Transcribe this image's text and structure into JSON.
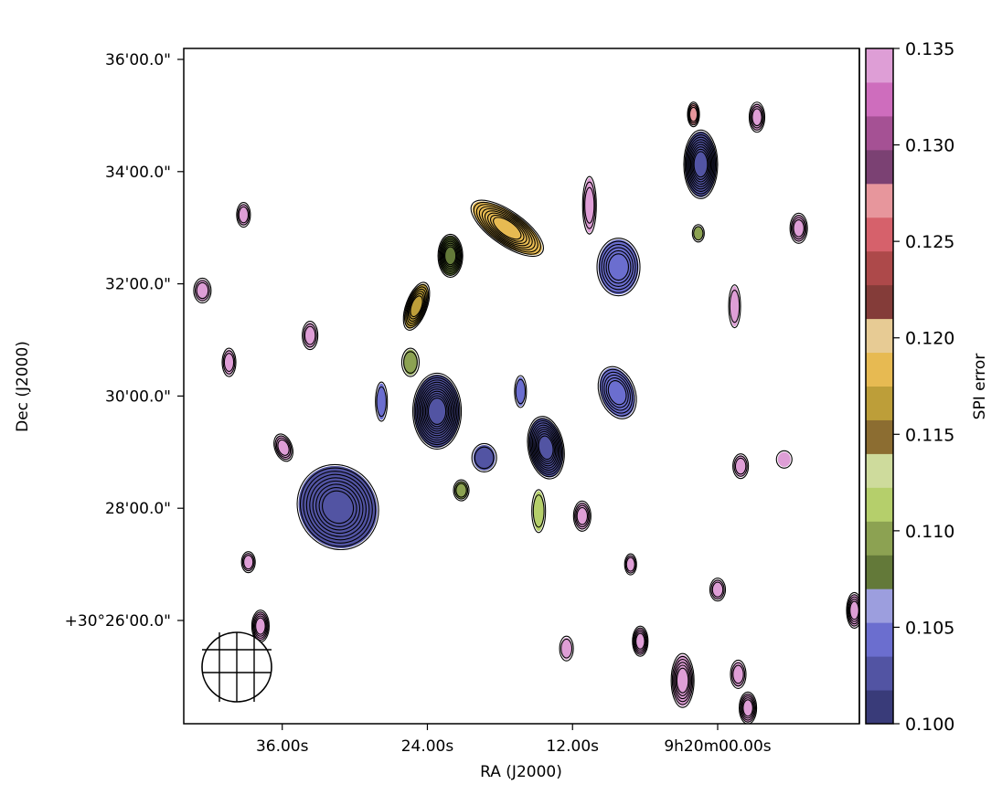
{
  "chart_data": {
    "type": "heatmap",
    "title": "",
    "xlabel": "RA (J2000)",
    "ylabel": "Dec (J2000)",
    "x_unit": "seconds of RA relative to 9h20m00s",
    "y_unit": "arcmin of Dec relative to +30°00'",
    "xlim": [
      44.1,
      -11.7
    ],
    "ylim": [
      24.16,
      36.2
    ],
    "x_ticks": [
      {
        "value": 36,
        "label": "36.00s"
      },
      {
        "value": 24,
        "label": "24.00s"
      },
      {
        "value": 12,
        "label": "12.00s"
      },
      {
        "value": 0,
        "label": "9h20m00.00s"
      }
    ],
    "y_ticks": [
      {
        "value": 36,
        "label": "36'00.0\""
      },
      {
        "value": 34,
        "label": "34'00.0\""
      },
      {
        "value": 32,
        "label": "32'00.0\""
      },
      {
        "value": 30,
        "label": "30'00.0\""
      },
      {
        "value": 28,
        "label": "28'00.0\""
      },
      {
        "value": 26,
        "label": "+30°26'00.0\""
      }
    ],
    "colorbar": {
      "label": "SPI error",
      "range": [
        0.1,
        0.135
      ],
      "ticks": [
        "0.100",
        "0.105",
        "0.110",
        "0.115",
        "0.120",
        "0.125",
        "0.130",
        "0.135"
      ],
      "colors": [
        "#393b79",
        "#5254a3",
        "#6b6ecf",
        "#9c9ede",
        "#637939",
        "#8ca252",
        "#b5cf6b",
        "#cedb9c",
        "#8c6d31",
        "#bd9e39",
        "#e7ba52",
        "#e7cb94",
        "#843c39",
        "#ad494a",
        "#d6616b",
        "#e7969c",
        "#7b4173",
        "#a55194",
        "#ce6dbd",
        "#de9ed6"
      ]
    },
    "sources": [
      {
        "ra": 31.4,
        "dec": 28.02,
        "rx": 42,
        "ry": 46,
        "rot": -30,
        "value": 0.102,
        "contours": 9
      },
      {
        "ra": 23.2,
        "dec": 29.73,
        "rx": 25,
        "ry": 40,
        "rot": 0,
        "value": 0.102,
        "contours": 12
      },
      {
        "ra": 14.2,
        "dec": 29.08,
        "rx": 18,
        "ry": 33,
        "rot": -10,
        "value": 0.102,
        "contours": 10
      },
      {
        "ra": 8.2,
        "dec": 32.3,
        "rx": 22,
        "ry": 30,
        "rot": 0,
        "value": 0.104,
        "contours": 6
      },
      {
        "ra": 1.4,
        "dec": 34.13,
        "rx": 17,
        "ry": 36,
        "rot": 0,
        "value": 0.102,
        "contours": 10
      },
      {
        "ra": 17.4,
        "dec": 32.99,
        "rx": 45,
        "ry": 17,
        "rot": 35,
        "value": 0.118,
        "contours": 9
      },
      {
        "ra": 22.1,
        "dec": 32.5,
        "rx": 12,
        "ry": 22,
        "rot": 0,
        "value": 0.108,
        "contours": 8
      },
      {
        "ra": 24.9,
        "dec": 31.6,
        "rx": 10,
        "ry": 26,
        "rot": 20,
        "value": 0.117,
        "contours": 7
      },
      {
        "ra": 8.3,
        "dec": 30.06,
        "rx": 18,
        "ry": 28,
        "rot": -20,
        "value": 0.105,
        "contours": 6
      },
      {
        "ra": 42.6,
        "dec": 31.88,
        "rx": 8,
        "ry": 12,
        "rot": 0,
        "value": 0.134,
        "contours": 3
      },
      {
        "ra": 39.2,
        "dec": 33.23,
        "rx": 6,
        "ry": 12,
        "rot": 0,
        "value": 0.134,
        "contours": 3
      },
      {
        "ra": 37.8,
        "dec": 25.9,
        "rx": 8,
        "ry": 16,
        "rot": 0,
        "value": 0.134,
        "contours": 5
      },
      {
        "ra": 10.6,
        "dec": 33.4,
        "rx": 6,
        "ry": 30,
        "rot": 0,
        "value": 0.134,
        "contours": 3
      },
      {
        "ra": -1.4,
        "dec": 31.6,
        "rx": 5,
        "ry": 22,
        "rot": 0,
        "value": 0.134,
        "contours": 2
      },
      {
        "ra": -6.7,
        "dec": 32.99,
        "rx": 8,
        "ry": 15,
        "rot": 0,
        "value": 0.134,
        "contours": 4
      },
      {
        "ra": 2.9,
        "dec": 24.93,
        "rx": 11,
        "ry": 28,
        "rot": 0,
        "value": 0.134,
        "contours": 6
      },
      {
        "ra": -2.5,
        "dec": 24.44,
        "rx": 8,
        "ry": 16,
        "rot": 0,
        "value": 0.134,
        "contours": 5
      },
      {
        "ra": -1.7,
        "dec": 25.04,
        "rx": 7,
        "ry": 14,
        "rot": 0,
        "value": 0.134,
        "contours": 3
      },
      {
        "ra": 11.2,
        "dec": 27.86,
        "rx": 8,
        "ry": 15,
        "rot": 0,
        "value": 0.134,
        "contours": 4
      },
      {
        "ra": 6.4,
        "dec": 25.63,
        "rx": 7,
        "ry": 15,
        "rot": 0,
        "value": 0.134,
        "contours": 5
      },
      {
        "ra": -3.25,
        "dec": 34.97,
        "rx": 7,
        "ry": 15,
        "rot": 0,
        "value": 0.134,
        "contours": 4
      },
      {
        "ra": -11.3,
        "dec": 26.18,
        "rx": 7,
        "ry": 18,
        "rot": 0,
        "value": 0.134,
        "contours": 5
      },
      {
        "ra": 33.7,
        "dec": 31.08,
        "rx": 7,
        "ry": 14,
        "rot": 0,
        "value": 0.134,
        "contours": 3
      },
      {
        "ra": 40.4,
        "dec": 30.6,
        "rx": 6,
        "ry": 14,
        "rot": 0,
        "value": 0.134,
        "contours": 3
      },
      {
        "ra": 38.8,
        "dec": 27.04,
        "rx": 6,
        "ry": 10,
        "rot": 0,
        "value": 0.134,
        "contours": 3
      },
      {
        "ra": 35.9,
        "dec": 29.08,
        "rx": 8,
        "ry": 14,
        "rot": -20,
        "value": 0.134,
        "contours": 4
      },
      {
        "ra": 0.0,
        "dec": 26.55,
        "rx": 7,
        "ry": 11,
        "rot": 0,
        "value": 0.134,
        "contours": 3
      },
      {
        "ra": 12.5,
        "dec": 25.5,
        "rx": 6,
        "ry": 12,
        "rot": 0,
        "value": 0.134,
        "contours": 2
      },
      {
        "ra": -5.5,
        "dec": 28.87,
        "rx": 7,
        "ry": 8,
        "rot": 0,
        "value": 0.134,
        "contours": 1
      },
      {
        "ra": -1.9,
        "dec": 28.75,
        "rx": 7,
        "ry": 12,
        "rot": 0,
        "value": 0.134,
        "contours": 3
      },
      {
        "ra": 7.2,
        "dec": 27.0,
        "rx": 5,
        "ry": 10,
        "rot": 0,
        "value": 0.134,
        "contours": 3
      },
      {
        "ra": 2.0,
        "dec": 35.02,
        "rx": 5,
        "ry": 12,
        "rot": 0,
        "value": 0.128,
        "contours": 4
      },
      {
        "ra": 25.4,
        "dec": 30.6,
        "rx": 8,
        "ry": 14,
        "rot": 0,
        "value": 0.109,
        "contours": 2
      },
      {
        "ra": 21.2,
        "dec": 28.32,
        "rx": 7,
        "ry": 10,
        "rot": 0,
        "value": 0.11,
        "contours": 3
      },
      {
        "ra": 19.3,
        "dec": 28.9,
        "rx": 12,
        "ry": 14,
        "rot": 0,
        "value": 0.103,
        "contours": 2
      },
      {
        "ra": 16.3,
        "dec": 30.08,
        "rx": 5,
        "ry": 16,
        "rot": 0,
        "value": 0.104,
        "contours": 2
      },
      {
        "ra": 27.8,
        "dec": 29.9,
        "rx": 5,
        "ry": 20,
        "rot": 0,
        "value": 0.104,
        "contours": 2
      },
      {
        "ra": 14.8,
        "dec": 27.95,
        "rx": 6,
        "ry": 22,
        "rot": 0,
        "value": 0.112,
        "contours": 2
      },
      {
        "ra": 1.6,
        "dec": 32.9,
        "rx": 5,
        "ry": 8,
        "rot": 0,
        "value": 0.11,
        "contours": 2
      }
    ],
    "beam": {
      "shape": "hatched-circle",
      "position": "bottom-left"
    }
  }
}
